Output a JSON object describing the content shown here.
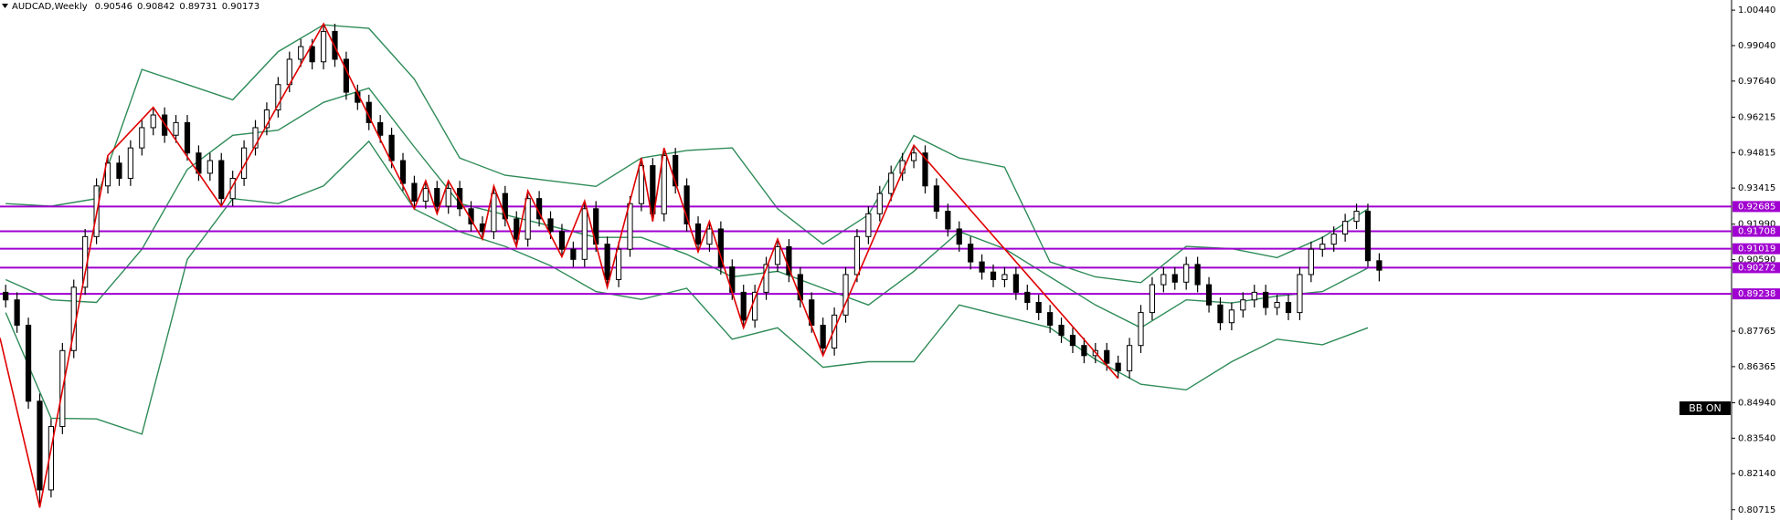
{
  "chart_data": {
    "type": "candlestick",
    "title": "AUDCAD,Weekly",
    "last_ohlc": [
      0.90546,
      0.90842,
      0.89731,
      0.90173
    ],
    "indicator_label": "BB ON",
    "ylim": [
      0.8031,
      1.0084
    ],
    "yticks": [
      {
        "value": 1.0044,
        "label": "1.00440"
      },
      {
        "value": 0.9904,
        "label": "0.99040"
      },
      {
        "value": 0.9764,
        "label": "0.97640"
      },
      0.96215,
      0.94815,
      0.93415,
      {
        "value": 0.9199,
        "label": "0.91990"
      },
      {
        "value": 0.9059,
        "label": "0.90590"
      },
      0.87765,
      0.86365,
      {
        "value": 0.8494,
        "label": "0.84940"
      },
      {
        "value": 0.8354,
        "label": "0.83540"
      },
      {
        "value": 0.8214,
        "label": "0.82140"
      },
      0.80715
    ],
    "levels": [
      0.92685,
      0.91708,
      0.91019,
      0.90272,
      0.89238
    ],
    "level_color": "#a000d0",
    "up_color": "#ffffff",
    "down_color": "#000000",
    "candles": [
      [
        0.893,
        0.896,
        0.887,
        0.89
      ],
      [
        0.89,
        0.893,
        0.877,
        0.88
      ],
      [
        0.88,
        0.883,
        0.847,
        0.85
      ],
      [
        0.85,
        0.853,
        0.808,
        0.815
      ],
      [
        0.815,
        0.843,
        0.812,
        0.84
      ],
      [
        0.84,
        0.873,
        0.837,
        0.87
      ],
      [
        0.87,
        0.898,
        0.867,
        0.895
      ],
      [
        0.895,
        0.918,
        0.892,
        0.915
      ],
      [
        0.915,
        0.938,
        0.912,
        0.935
      ],
      [
        0.935,
        0.947,
        0.932,
        0.944
      ],
      [
        0.944,
        0.947,
        0.935,
        0.938
      ],
      [
        0.938,
        0.953,
        0.935,
        0.95
      ],
      [
        0.95,
        0.961,
        0.947,
        0.958
      ],
      [
        0.958,
        0.966,
        0.955,
        0.963
      ],
      [
        0.963,
        0.966,
        0.952,
        0.955
      ],
      [
        0.955,
        0.963,
        0.952,
        0.96
      ],
      [
        0.96,
        0.963,
        0.945,
        0.948
      ],
      [
        0.948,
        0.951,
        0.937,
        0.94
      ],
      [
        0.94,
        0.948,
        0.937,
        0.945
      ],
      [
        0.945,
        0.948,
        0.927,
        0.93
      ],
      [
        0.93,
        0.941,
        0.927,
        0.938
      ],
      [
        0.938,
        0.953,
        0.935,
        0.95
      ],
      [
        0.95,
        0.961,
        0.947,
        0.958
      ],
      [
        0.958,
        0.968,
        0.955,
        0.965
      ],
      [
        0.965,
        0.978,
        0.962,
        0.975
      ],
      [
        0.975,
        0.988,
        0.972,
        0.985
      ],
      [
        0.985,
        0.993,
        0.982,
        0.99
      ],
      [
        0.99,
        0.993,
        0.981,
        0.984
      ],
      [
        0.984,
        0.999,
        0.981,
        0.996
      ],
      [
        0.996,
        0.999,
        0.982,
        0.985
      ],
      [
        0.985,
        0.988,
        0.969,
        0.972
      ],
      [
        0.972,
        0.975,
        0.965,
        0.968
      ],
      [
        0.968,
        0.971,
        0.957,
        0.96
      ],
      [
        0.96,
        0.963,
        0.952,
        0.955
      ],
      [
        0.955,
        0.958,
        0.942,
        0.945
      ],
      [
        0.945,
        0.948,
        0.933,
        0.936
      ],
      [
        0.936,
        0.939,
        0.926,
        0.929
      ],
      [
        0.929,
        0.937,
        0.926,
        0.934
      ],
      [
        0.934,
        0.937,
        0.924,
        0.927
      ],
      [
        0.927,
        0.937,
        0.924,
        0.934
      ],
      [
        0.934,
        0.937,
        0.923,
        0.926
      ],
      [
        0.926,
        0.929,
        0.917,
        0.92
      ],
      [
        0.92,
        0.923,
        0.914,
        0.917
      ],
      [
        0.917,
        0.935,
        0.914,
        0.932
      ],
      [
        0.932,
        0.935,
        0.919,
        0.922
      ],
      [
        0.922,
        0.925,
        0.911,
        0.914
      ],
      [
        0.914,
        0.933,
        0.911,
        0.93
      ],
      [
        0.93,
        0.933,
        0.919,
        0.922
      ],
      [
        0.922,
        0.925,
        0.914,
        0.917
      ],
      [
        0.917,
        0.92,
        0.907,
        0.91
      ],
      [
        0.91,
        0.913,
        0.903,
        0.906
      ],
      [
        0.906,
        0.929,
        0.903,
        0.926
      ],
      [
        0.926,
        0.929,
        0.909,
        0.912
      ],
      [
        0.912,
        0.915,
        0.895,
        0.898
      ],
      [
        0.898,
        0.913,
        0.895,
        0.91
      ],
      [
        0.91,
        0.931,
        0.907,
        0.928
      ],
      [
        0.928,
        0.946,
        0.925,
        0.943
      ],
      [
        0.943,
        0.946,
        0.921,
        0.924
      ],
      [
        0.924,
        0.95,
        0.921,
        0.947
      ],
      [
        0.947,
        0.95,
        0.932,
        0.935
      ],
      [
        0.935,
        0.938,
        0.917,
        0.92
      ],
      [
        0.92,
        0.923,
        0.909,
        0.912
      ],
      [
        0.912,
        0.921,
        0.909,
        0.918
      ],
      [
        0.918,
        0.921,
        0.9,
        0.903
      ],
      [
        0.903,
        0.906,
        0.89,
        0.893
      ],
      [
        0.893,
        0.896,
        0.879,
        0.882
      ],
      [
        0.882,
        0.896,
        0.879,
        0.893
      ],
      [
        0.893,
        0.907,
        0.89,
        0.904
      ],
      [
        0.904,
        0.914,
        0.901,
        0.911
      ],
      [
        0.911,
        0.914,
        0.897,
        0.9
      ],
      [
        0.9,
        0.903,
        0.887,
        0.89
      ],
      [
        0.89,
        0.893,
        0.877,
        0.88
      ],
      [
        0.88,
        0.883,
        0.868,
        0.871
      ],
      [
        0.871,
        0.887,
        0.868,
        0.884
      ],
      [
        0.884,
        0.903,
        0.881,
        0.9
      ],
      [
        0.9,
        0.918,
        0.897,
        0.915
      ],
      [
        0.915,
        0.927,
        0.912,
        0.924
      ],
      [
        0.924,
        0.935,
        0.921,
        0.932
      ],
      [
        0.932,
        0.943,
        0.929,
        0.94
      ],
      [
        0.94,
        0.948,
        0.937,
        0.945
      ],
      [
        0.945,
        0.951,
        0.942,
        0.948
      ],
      [
        0.948,
        0.951,
        0.932,
        0.935
      ],
      [
        0.935,
        0.938,
        0.922,
        0.925
      ],
      [
        0.925,
        0.928,
        0.915,
        0.918
      ],
      [
        0.918,
        0.921,
        0.909,
        0.912
      ],
      [
        0.912,
        0.915,
        0.902,
        0.905
      ],
      [
        0.905,
        0.908,
        0.898,
        0.901
      ],
      [
        0.901,
        0.904,
        0.895,
        0.898
      ],
      [
        0.898,
        0.903,
        0.895,
        0.9
      ],
      [
        0.9,
        0.903,
        0.89,
        0.893
      ],
      [
        0.893,
        0.896,
        0.886,
        0.889
      ],
      [
        0.889,
        0.892,
        0.882,
        0.885
      ],
      [
        0.885,
        0.888,
        0.877,
        0.88
      ],
      [
        0.88,
        0.883,
        0.873,
        0.876
      ],
      [
        0.876,
        0.879,
        0.869,
        0.872
      ],
      [
        0.872,
        0.875,
        0.865,
        0.868
      ],
      [
        0.868,
        0.873,
        0.865,
        0.87
      ],
      [
        0.87,
        0.873,
        0.862,
        0.865
      ],
      [
        0.865,
        0.868,
        0.859,
        0.862
      ],
      [
        0.862,
        0.875,
        0.859,
        0.872
      ],
      [
        0.872,
        0.888,
        0.869,
        0.885
      ],
      [
        0.885,
        0.899,
        0.882,
        0.896
      ],
      [
        0.896,
        0.903,
        0.893,
        0.9
      ],
      [
        0.9,
        0.903,
        0.894,
        0.897
      ],
      [
        0.897,
        0.907,
        0.894,
        0.904
      ],
      [
        0.904,
        0.907,
        0.893,
        0.896
      ],
      [
        0.896,
        0.899,
        0.885,
        0.888
      ],
      [
        0.888,
        0.891,
        0.878,
        0.881
      ],
      [
        0.881,
        0.889,
        0.878,
        0.886
      ],
      [
        0.886,
        0.893,
        0.883,
        0.89
      ],
      [
        0.89,
        0.896,
        0.887,
        0.893
      ],
      [
        0.893,
        0.896,
        0.884,
        0.887
      ],
      [
        0.887,
        0.892,
        0.884,
        0.889
      ],
      [
        0.889,
        0.892,
        0.882,
        0.885
      ],
      [
        0.885,
        0.903,
        0.882,
        0.9
      ],
      [
        0.9,
        0.913,
        0.897,
        0.91
      ],
      [
        0.91,
        0.915,
        0.907,
        0.912
      ],
      [
        0.912,
        0.919,
        0.909,
        0.916
      ],
      [
        0.916,
        0.924,
        0.913,
        0.921
      ],
      [
        0.921,
        0.928,
        0.918,
        0.925
      ],
      [
        0.925,
        0.928,
        0.903,
        0.9055
      ],
      [
        0.90546,
        0.90842,
        0.89731,
        0.90173
      ]
    ],
    "band_x": [
      0,
      4,
      8,
      12,
      16,
      20,
      24,
      28,
      32,
      36,
      40,
      44,
      48,
      52,
      56,
      60,
      64,
      68,
      72,
      76,
      80,
      84,
      88,
      92,
      96,
      100,
      104,
      108,
      112,
      116,
      120
    ],
    "bands": [
      {
        "color": "#2e8b57",
        "values": [
          0.928,
          0.927,
          0.93,
          0.981,
          0.975,
          0.969,
          0.988,
          0.9986,
          0.9972,
          0.9772,
          0.946,
          0.9392,
          0.937,
          0.9348,
          0.946,
          0.949,
          0.95,
          0.926,
          0.912,
          0.9236,
          0.9549,
          0.946,
          0.9424,
          0.905,
          0.8991,
          0.8968,
          0.9111,
          0.9102,
          0.9067,
          0.9147,
          0.9259
        ]
      },
      {
        "color": "#2e8b57",
        "values": [
          0.898,
          0.89,
          0.889,
          0.91,
          0.9415,
          0.955,
          0.957,
          0.968,
          0.9736,
          0.9504,
          0.928,
          0.9236,
          0.9192,
          0.9147,
          0.9147,
          0.908,
          0.8991,
          0.9013,
          0.8946,
          0.888,
          0.9013,
          0.917,
          0.9102,
          0.8991,
          0.888,
          0.879,
          0.89,
          0.8888,
          0.8915,
          0.8933,
          0.9026
        ]
      },
      {
        "color": "#2e8b57",
        "values": [
          0.885,
          0.8433,
          0.843,
          0.837,
          0.906,
          0.93,
          0.928,
          0.935,
          0.9526,
          0.9259,
          0.9169,
          0.9111,
          0.9035,
          0.8933,
          0.8902,
          0.8946,
          0.8745,
          0.879,
          0.8634,
          0.8656,
          0.8656,
          0.888,
          0.8835,
          0.879,
          0.8665,
          0.8567,
          0.8545,
          0.8656,
          0.8745,
          0.8723,
          0.879
        ]
      }
    ],
    "zigzag": {
      "color": "#e00000",
      "x": [
        -0.5,
        3,
        9,
        13,
        19,
        28,
        36,
        37,
        38,
        39,
        42,
        43,
        45,
        46,
        49,
        51,
        53,
        56,
        57,
        58,
        61,
        62,
        65,
        68,
        72,
        80,
        98
      ],
      "values": [
        0.875,
        0.808,
        0.947,
        0.966,
        0.927,
        0.999,
        0.926,
        0.937,
        0.924,
        0.937,
        0.914,
        0.935,
        0.911,
        0.933,
        0.907,
        0.929,
        0.895,
        0.946,
        0.921,
        0.95,
        0.909,
        0.921,
        0.879,
        0.914,
        0.868,
        0.951,
        0.859
      ]
    }
  }
}
